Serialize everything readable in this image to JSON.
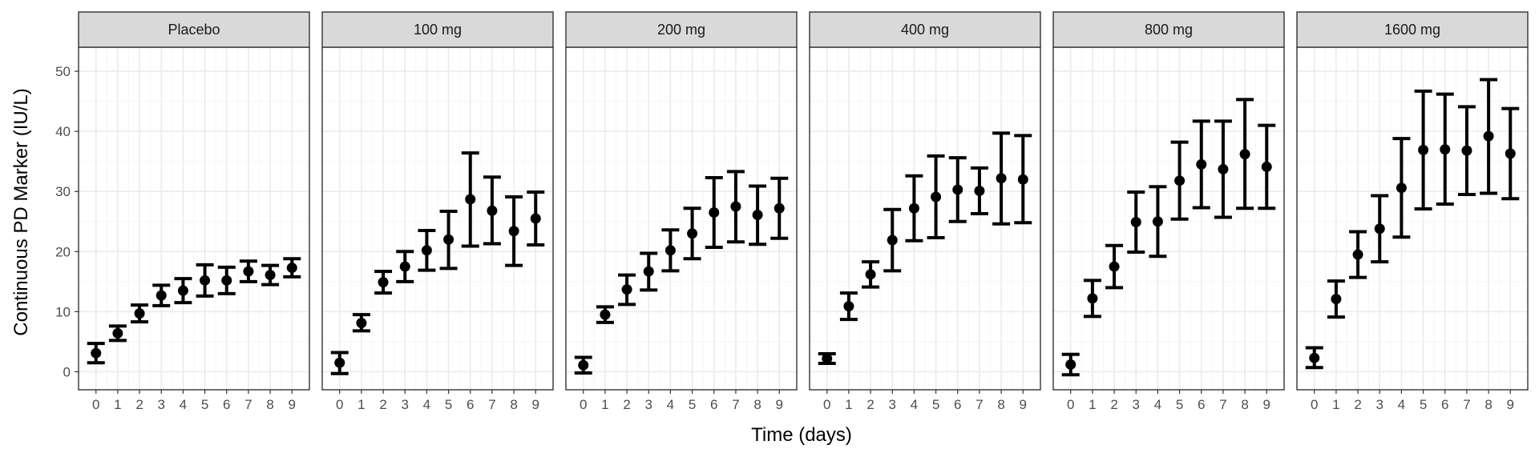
{
  "chart_data": {
    "type": "scatter",
    "xlabel": "Time (days)",
    "ylabel": "Continuous PD Marker (IU/L)",
    "x_ticks": [
      "0",
      "1",
      "2",
      "3",
      "4",
      "5",
      "6",
      "7",
      "8",
      "9"
    ],
    "y_ticks": [
      "0",
      "10",
      "20",
      "30",
      "40",
      "50"
    ],
    "ylim": [
      -3,
      54
    ],
    "xlim": [
      -0.8,
      9.8
    ],
    "grid": true,
    "error_bars": true,
    "panels": [
      {
        "label": "Placebo",
        "x": [
          0,
          1,
          2,
          3,
          4,
          5,
          6,
          7,
          8,
          9
        ],
        "mean": [
          3.1,
          6.4,
          9.7,
          12.7,
          13.5,
          15.2,
          15.2,
          16.7,
          16.1,
          17.3
        ],
        "lower": [
          1.5,
          5.2,
          8.3,
          11.0,
          11.5,
          12.6,
          13.0,
          15.0,
          14.5,
          15.8
        ],
        "upper": [
          4.7,
          7.6,
          11.1,
          14.4,
          15.5,
          17.8,
          17.4,
          18.4,
          17.7,
          18.8
        ]
      },
      {
        "label": "100 mg",
        "x": [
          0,
          1,
          2,
          3,
          4,
          5,
          6,
          7,
          8,
          9
        ],
        "mean": [
          1.5,
          8.1,
          14.9,
          17.5,
          20.2,
          22.0,
          28.7,
          26.8,
          23.4,
          25.5
        ],
        "lower": [
          -0.3,
          6.8,
          13.1,
          15.0,
          16.9,
          17.2,
          20.9,
          21.3,
          17.7,
          21.1
        ],
        "upper": [
          3.2,
          9.5,
          16.7,
          20.0,
          23.5,
          26.7,
          36.4,
          32.4,
          29.1,
          29.9
        ]
      },
      {
        "label": "200 mg",
        "x": [
          0,
          1,
          2,
          3,
          4,
          5,
          6,
          7,
          8,
          9
        ],
        "mean": [
          1.1,
          9.5,
          13.7,
          16.7,
          20.2,
          23.0,
          26.5,
          27.5,
          26.1,
          27.2
        ],
        "lower": [
          -0.2,
          8.2,
          11.2,
          13.6,
          16.8,
          18.8,
          20.7,
          21.6,
          21.2,
          22.2
        ],
        "upper": [
          2.4,
          10.8,
          16.1,
          19.7,
          23.6,
          27.2,
          32.3,
          33.3,
          30.9,
          32.2
        ]
      },
      {
        "label": "400 mg",
        "x": [
          0,
          1,
          2,
          3,
          4,
          5,
          6,
          7,
          8,
          9
        ],
        "mean": [
          2.2,
          10.9,
          16.2,
          21.9,
          27.2,
          29.1,
          30.3,
          30.1,
          32.2,
          32.0
        ],
        "lower": [
          1.4,
          8.7,
          14.1,
          16.8,
          21.8,
          22.3,
          25.0,
          26.3,
          24.6,
          24.8
        ],
        "upper": [
          3.0,
          13.1,
          18.3,
          27.0,
          32.6,
          35.9,
          35.6,
          33.9,
          39.7,
          39.3
        ]
      },
      {
        "label": "800 mg",
        "x": [
          0,
          1,
          2,
          3,
          4,
          5,
          6,
          7,
          8,
          9
        ],
        "mean": [
          1.2,
          12.2,
          17.5,
          24.9,
          25.0,
          31.8,
          34.5,
          33.7,
          36.2,
          34.1
        ],
        "lower": [
          -0.5,
          9.2,
          14.0,
          19.9,
          19.2,
          25.4,
          27.3,
          25.7,
          27.2,
          27.2
        ],
        "upper": [
          2.9,
          15.2,
          21.0,
          29.9,
          30.8,
          38.2,
          41.7,
          41.7,
          45.3,
          41.0
        ]
      },
      {
        "label": "1600 mg",
        "x": [
          0,
          1,
          2,
          3,
          4,
          5,
          6,
          7,
          8,
          9
        ],
        "mean": [
          2.3,
          12.1,
          19.5,
          23.8,
          30.6,
          36.9,
          37.0,
          36.8,
          39.2,
          36.3
        ],
        "lower": [
          0.7,
          9.1,
          15.7,
          18.3,
          22.4,
          27.1,
          27.9,
          29.5,
          29.7,
          28.8
        ],
        "upper": [
          4.0,
          15.1,
          23.3,
          29.3,
          38.8,
          46.7,
          46.2,
          44.1,
          48.6,
          43.8
        ]
      }
    ],
    "colors": {
      "strip_fill": "#d9d9d9",
      "panel_border": "#333333",
      "grid_major": "#ebebeb",
      "grid_minor": "#f5f5f5",
      "marks": "#000000"
    }
  }
}
